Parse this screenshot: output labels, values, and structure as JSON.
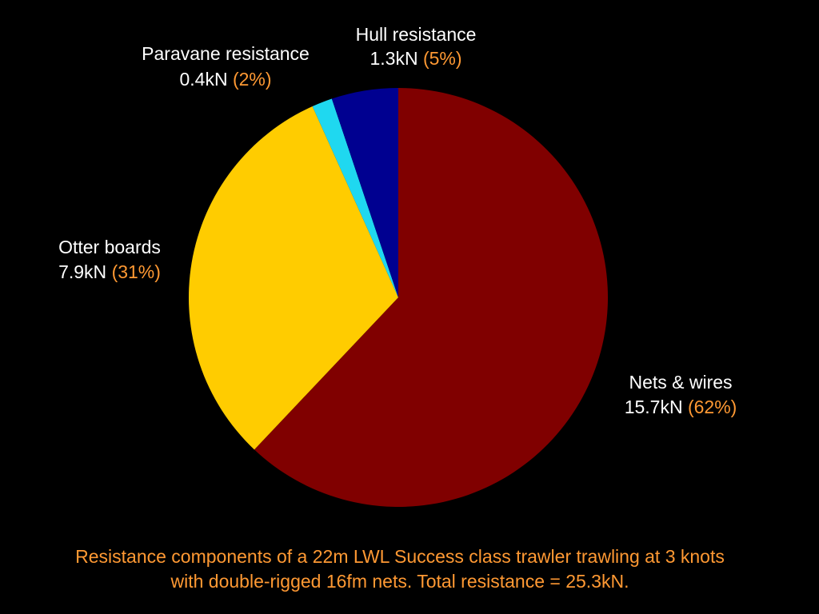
{
  "chart_data": {
    "type": "pie",
    "categories": [
      "Nets & wires",
      "Otter boards",
      "Paravane resistance",
      "Hull resistance"
    ],
    "values": [
      15.7,
      7.9,
      0.4,
      1.3
    ],
    "value_labels": [
      "15.7kN",
      "7.9kN",
      "0.4kN",
      "1.3kN"
    ],
    "percents": [
      62,
      31,
      2,
      5
    ],
    "percent_labels": [
      "(62%)",
      "(31%)",
      "(2%)",
      "(5%)"
    ],
    "colors": [
      "#800000",
      "#ffcc00",
      "#1fd8f0",
      "#000090"
    ],
    "caption": [
      "Resistance components of a 22m LWL Success class trawler trawling at 3 knots",
      "with double-rigged 16fm nets. Total resistance = 25.3kN."
    ]
  }
}
